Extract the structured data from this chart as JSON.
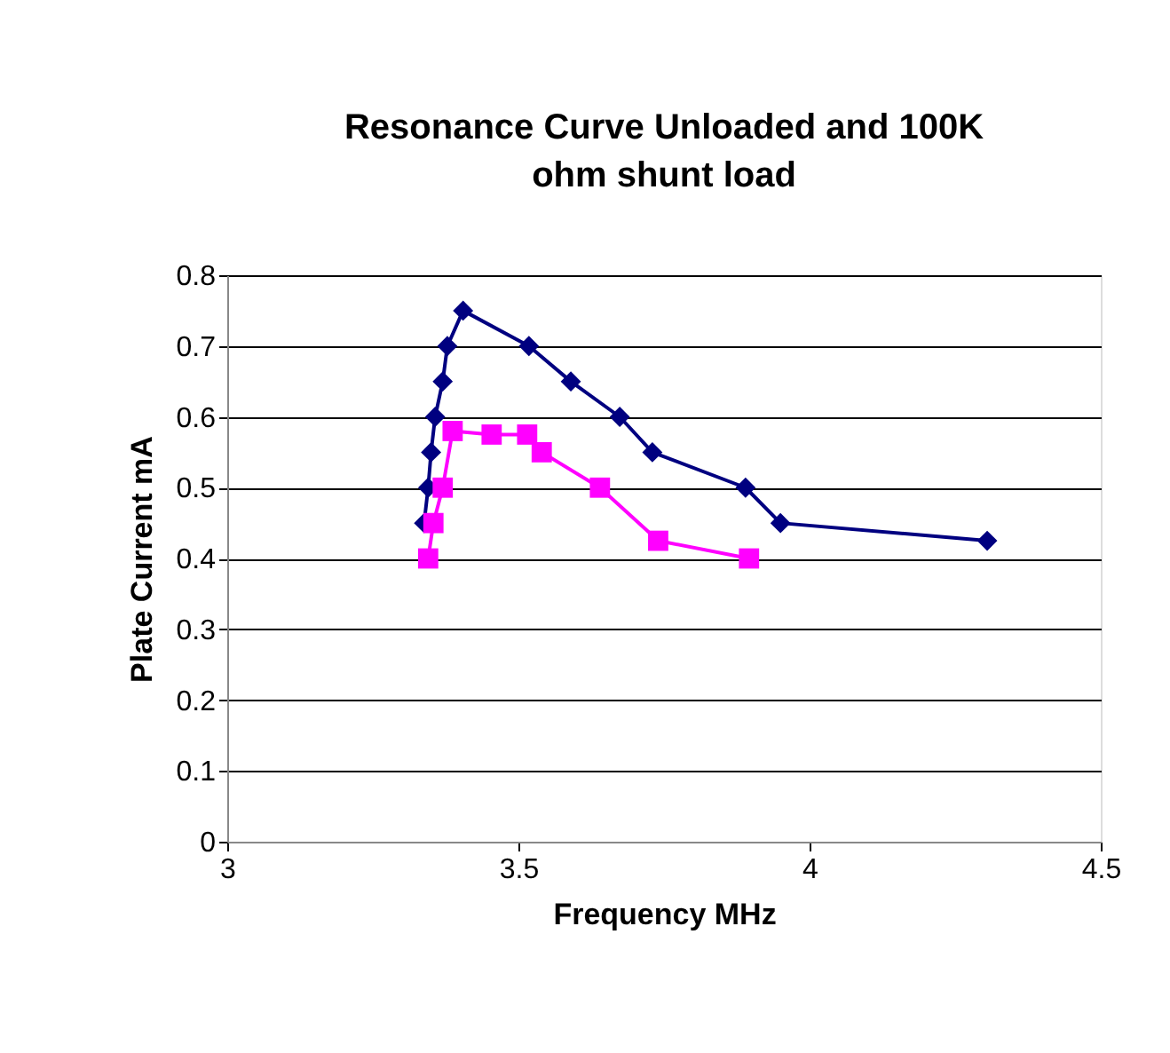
{
  "chart_data": {
    "type": "line",
    "title": "Resonance Curve Unloaded and 100K ohm shunt load",
    "xlabel": "Frequency MHz",
    "ylabel": "Plate Current mA",
    "series": [
      {
        "color": "#000080",
        "marker": "diamond",
        "x": [
          3.338,
          3.345,
          3.35,
          3.357,
          3.37,
          3.378,
          3.405,
          3.518,
          3.59,
          3.674,
          3.73,
          3.89,
          3.95,
          4.305
        ],
        "values": [
          0.45,
          0.5,
          0.55,
          0.6,
          0.65,
          0.7,
          0.75,
          0.7,
          0.65,
          0.6,
          0.55,
          0.5,
          0.45,
          0.425
        ]
      },
      {
        "color": "#ff00ff",
        "marker": "square",
        "x": [
          3.345,
          3.354,
          3.37,
          3.387,
          3.454,
          3.515,
          3.54,
          3.64,
          3.74,
          3.896
        ],
        "values": [
          0.4,
          0.45,
          0.5,
          0.58,
          0.575,
          0.575,
          0.55,
          0.5,
          0.425,
          0.4
        ]
      }
    ],
    "xlim": [
      3,
      4.5
    ],
    "xticks": [
      3,
      3.5,
      4,
      4.5
    ],
    "ylim": [
      0,
      0.8
    ],
    "yticks": [
      0,
      0.1,
      0.2,
      0.3,
      0.4,
      0.5,
      0.6,
      0.7,
      0.8
    ],
    "grid": "y",
    "legend": false,
    "line_style": "solid"
  }
}
